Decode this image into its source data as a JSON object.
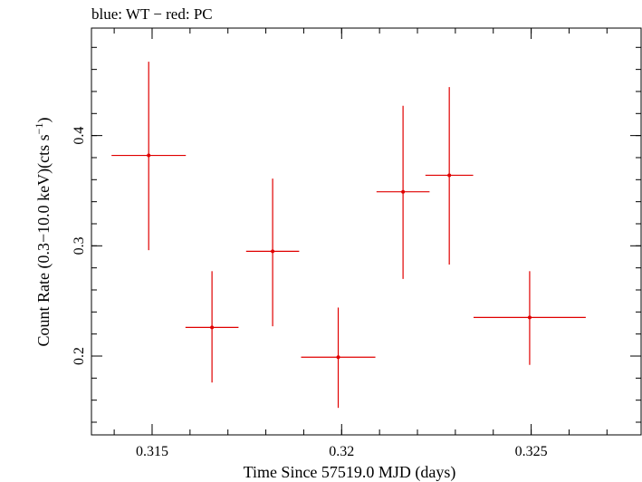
{
  "chart_data": {
    "type": "scatter",
    "title": "blue: WT − red: PC",
    "xlabel": "Time Since 57519.0 MJD (days)",
    "ylabel_main": "Count Rate (0.3−10.0 keV)(cts s",
    "ylabel_sup": "−1",
    "ylabel_end": ")",
    "xlim": [
      0.3134,
      0.3279
    ],
    "ylim": [
      0.1285,
      0.4975
    ],
    "x_ticks": [
      {
        "value": 0.315,
        "label": "0.315"
      },
      {
        "value": 0.32,
        "label": "0.32"
      },
      {
        "value": 0.325,
        "label": "0.325"
      }
    ],
    "y_ticks": [
      {
        "value": 0.2,
        "label": "0.2"
      },
      {
        "value": 0.3,
        "label": "0.3"
      },
      {
        "value": 0.4,
        "label": "0.4"
      }
    ],
    "x_minor_step": 0.001,
    "y_minor_step": 0.02,
    "grid": false,
    "legend": "none",
    "series": [
      {
        "color": "#e00000",
        "points": [
          {
            "x": 0.31491,
            "xerr_lo": 0.00098,
            "xerr_hi": 0.00098,
            "y": 0.382,
            "yerr_lo": 0.086,
            "yerr_hi": 0.085
          },
          {
            "x": 0.31658,
            "xerr_lo": 0.0007,
            "xerr_hi": 0.0007,
            "y": 0.226,
            "yerr_lo": 0.05,
            "yerr_hi": 0.051
          },
          {
            "x": 0.31818,
            "xerr_lo": 0.0007,
            "xerr_hi": 0.0007,
            "y": 0.295,
            "yerr_lo": 0.068,
            "yerr_hi": 0.066
          },
          {
            "x": 0.31991,
            "xerr_lo": 0.00098,
            "xerr_hi": 0.00098,
            "y": 0.199,
            "yerr_lo": 0.046,
            "yerr_hi": 0.045
          },
          {
            "x": 0.32162,
            "xerr_lo": 0.0007,
            "xerr_hi": 0.0007,
            "y": 0.349,
            "yerr_lo": 0.079,
            "yerr_hi": 0.078
          },
          {
            "x": 0.32284,
            "xerr_lo": 0.00063,
            "xerr_hi": 0.00063,
            "y": 0.364,
            "yerr_lo": 0.081,
            "yerr_hi": 0.08
          },
          {
            "x": 0.32496,
            "xerr_lo": 0.00148,
            "xerr_hi": 0.00148,
            "y": 0.235,
            "yerr_lo": 0.043,
            "yerr_hi": 0.042
          }
        ]
      }
    ]
  }
}
